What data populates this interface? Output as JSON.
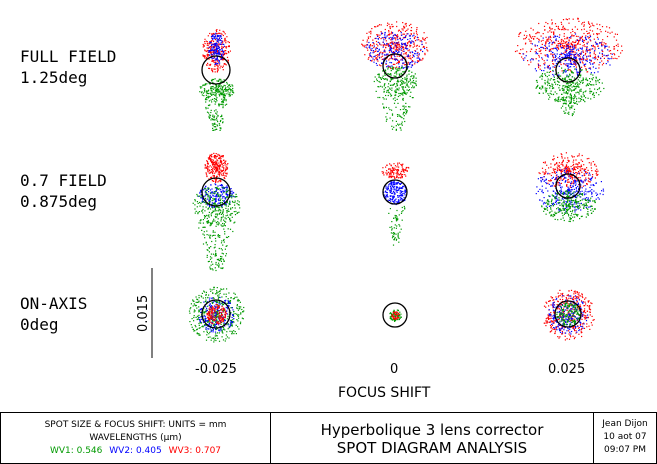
{
  "rows": [
    {
      "line1": "FULL FIELD",
      "line2": "1.25deg"
    },
    {
      "line1": "0.7 FIELD",
      "line2": "0.875deg"
    },
    {
      "line1": "ON-AXIS",
      "line2": "0deg"
    }
  ],
  "scale_bar_label": "0.015",
  "x_ticks": [
    "-0.025",
    "0",
    "0.025"
  ],
  "x_label": "FOCUS SHIFT",
  "footer": {
    "units_line": "SPOT SIZE & FOCUS SHIFT: UNITS = mm",
    "wavelengths_line": "WAVELENGTHS (µm)",
    "wv1": "WV1: 0.546",
    "wv2": "WV2: 0.405",
    "wv3": "WV3: 0.707",
    "title_line1": "Hyperbolique 3 lens corrector",
    "title_line2": "SPOT DIAGRAM ANALYSIS",
    "author": "Jean Dijon",
    "date": "10 aot 07",
    "time": "09:07 PM"
  },
  "colors": {
    "wv1": "#009900",
    "wv2": "#0000ff",
    "wv3": "#ff0000"
  }
}
